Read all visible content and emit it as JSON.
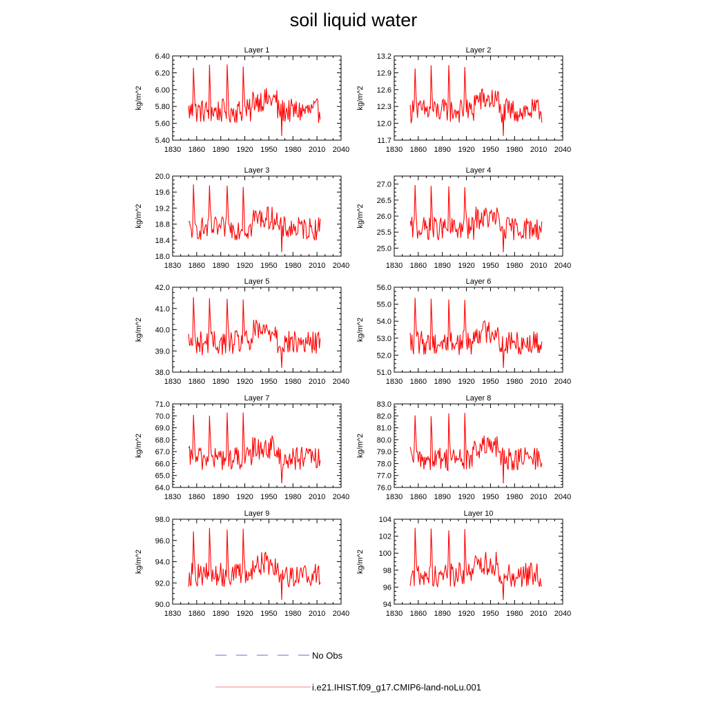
{
  "title": "soil liquid water",
  "colors": {
    "model": "#ff0000",
    "obs": "#5b6fd6",
    "axis": "#000000"
  },
  "legend": {
    "obs_label": "No Obs",
    "model_label": "i.e21.IHIST.f09_g17.CMIP6-land-noLu.001"
  },
  "chart_data": [
    {
      "type": "line",
      "title": "Layer 1",
      "ylabel": "kg/m^2",
      "xlim": [
        1830,
        2040
      ],
      "xticks": [
        "1830",
        "1860",
        "1890",
        "1920",
        "1950",
        "1980",
        "2010",
        "2040"
      ],
      "ylim": [
        5.4,
        6.4
      ],
      "yticks": [
        "5.40",
        "5.60",
        "5.80",
        "6.00",
        "6.20",
        "6.40"
      ],
      "x_range": [
        1850,
        2014
      ],
      "series": [
        {
          "name": "i.e21.IHIST.f09_g17.CMIP6-land-noLu.001"
        }
      ]
    },
    {
      "type": "line",
      "title": "Layer 2",
      "ylabel": "kg/m^2",
      "xlim": [
        1830,
        2040
      ],
      "xticks": [
        "1830",
        "1860",
        "1890",
        "1920",
        "1950",
        "1980",
        "2010",
        "2040"
      ],
      "ylim": [
        11.7,
        13.2
      ],
      "yticks": [
        "11.7",
        "12.0",
        "12.3",
        "12.6",
        "12.9",
        "13.2"
      ],
      "x_range": [
        1850,
        2014
      ],
      "series": [
        {
          "name": "i.e21.IHIST.f09_g17.CMIP6-land-noLu.001"
        }
      ]
    },
    {
      "type": "line",
      "title": "Layer 3",
      "ylabel": "kg/m^2",
      "xlim": [
        1830,
        2040
      ],
      "xticks": [
        "1830",
        "1860",
        "1890",
        "1920",
        "1950",
        "1980",
        "2010",
        "2040"
      ],
      "ylim": [
        18.0,
        20.0
      ],
      "yticks": [
        "18.0",
        "18.4",
        "18.8",
        "19.2",
        "19.6",
        "20.0"
      ],
      "x_range": [
        1850,
        2014
      ],
      "series": [
        {
          "name": "i.e21.IHIST.f09_g17.CMIP6-land-noLu.001"
        }
      ]
    },
    {
      "type": "line",
      "title": "Layer 4",
      "ylabel": "kg/m^2",
      "xlim": [
        1830,
        2040
      ],
      "xticks": [
        "1830",
        "1860",
        "1890",
        "1920",
        "1950",
        "1980",
        "2010",
        "2040"
      ],
      "ylim": [
        24.75,
        27.25
      ],
      "yticks": [
        "25.0",
        "25.5",
        "26.0",
        "26.5",
        "27.0"
      ],
      "x_range": [
        1850,
        2014
      ],
      "series": [
        {
          "name": "i.e21.IHIST.f09_g17.CMIP6-land-noLu.001"
        }
      ]
    },
    {
      "type": "line",
      "title": "Layer 5",
      "ylabel": "kg/m^2",
      "xlim": [
        1830,
        2040
      ],
      "xticks": [
        "1830",
        "1860",
        "1890",
        "1920",
        "1950",
        "1980",
        "2010",
        "2040"
      ],
      "ylim": [
        38.0,
        42.0
      ],
      "yticks": [
        "38.0",
        "39.0",
        "40.0",
        "41.0",
        "42.0"
      ],
      "x_range": [
        1850,
        2014
      ],
      "series": [
        {
          "name": "i.e21.IHIST.f09_g17.CMIP6-land-noLu.001"
        }
      ]
    },
    {
      "type": "line",
      "title": "Layer 6",
      "ylabel": "kg/m^2",
      "xlim": [
        1830,
        2040
      ],
      "xticks": [
        "1830",
        "1860",
        "1890",
        "1920",
        "1950",
        "1980",
        "2010",
        "2040"
      ],
      "ylim": [
        51.0,
        56.0
      ],
      "yticks": [
        "51.0",
        "52.0",
        "53.0",
        "54.0",
        "55.0",
        "56.0"
      ],
      "x_range": [
        1850,
        2014
      ],
      "series": [
        {
          "name": "i.e21.IHIST.f09_g17.CMIP6-land-noLu.001"
        }
      ]
    },
    {
      "type": "line",
      "title": "Layer 7",
      "ylabel": "kg/m^2",
      "xlim": [
        1830,
        2040
      ],
      "xticks": [
        "1830",
        "1860",
        "1890",
        "1920",
        "1950",
        "1980",
        "2010",
        "2040"
      ],
      "ylim": [
        64.0,
        71.0
      ],
      "yticks": [
        "64.0",
        "65.0",
        "66.0",
        "67.0",
        "68.0",
        "69.0",
        "70.0",
        "71.0"
      ],
      "x_range": [
        1850,
        2014
      ],
      "series": [
        {
          "name": "i.e21.IHIST.f09_g17.CMIP6-land-noLu.001"
        }
      ]
    },
    {
      "type": "line",
      "title": "Layer 8",
      "ylabel": "kg/m^2",
      "xlim": [
        1830,
        2040
      ],
      "xticks": [
        "1830",
        "1860",
        "1890",
        "1920",
        "1950",
        "1980",
        "2010",
        "2040"
      ],
      "ylim": [
        76.0,
        83.0
      ],
      "yticks": [
        "76.0",
        "77.0",
        "78.0",
        "79.0",
        "80.0",
        "81.0",
        "82.0",
        "83.0"
      ],
      "x_range": [
        1850,
        2014
      ],
      "series": [
        {
          "name": "i.e21.IHIST.f09_g17.CMIP6-land-noLu.001"
        }
      ]
    },
    {
      "type": "line",
      "title": "Layer 9",
      "ylabel": "kg/m^2",
      "xlim": [
        1830,
        2040
      ],
      "xticks": [
        "1830",
        "1860",
        "1890",
        "1920",
        "1950",
        "1980",
        "2010",
        "2040"
      ],
      "ylim": [
        90.0,
        98.0
      ],
      "yticks": [
        "90.0",
        "92.0",
        "94.0",
        "96.0",
        "98.0"
      ],
      "x_range": [
        1850,
        2014
      ],
      "series": [
        {
          "name": "i.e21.IHIST.f09_g17.CMIP6-land-noLu.001"
        }
      ]
    },
    {
      "type": "line",
      "title": "Layer 10",
      "ylabel": "kg/m^2",
      "xlim": [
        1830,
        2040
      ],
      "xticks": [
        "1830",
        "1860",
        "1890",
        "1920",
        "1950",
        "1980",
        "2010",
        "2040"
      ],
      "ylim": [
        94,
        104
      ],
      "yticks": [
        "94",
        "96",
        "98",
        "100",
        "102",
        "104"
      ],
      "x_range": [
        1850,
        2014
      ],
      "series": [
        {
          "name": "i.e21.IHIST.f09_g17.CMIP6-land-noLu.001"
        }
      ]
    }
  ]
}
